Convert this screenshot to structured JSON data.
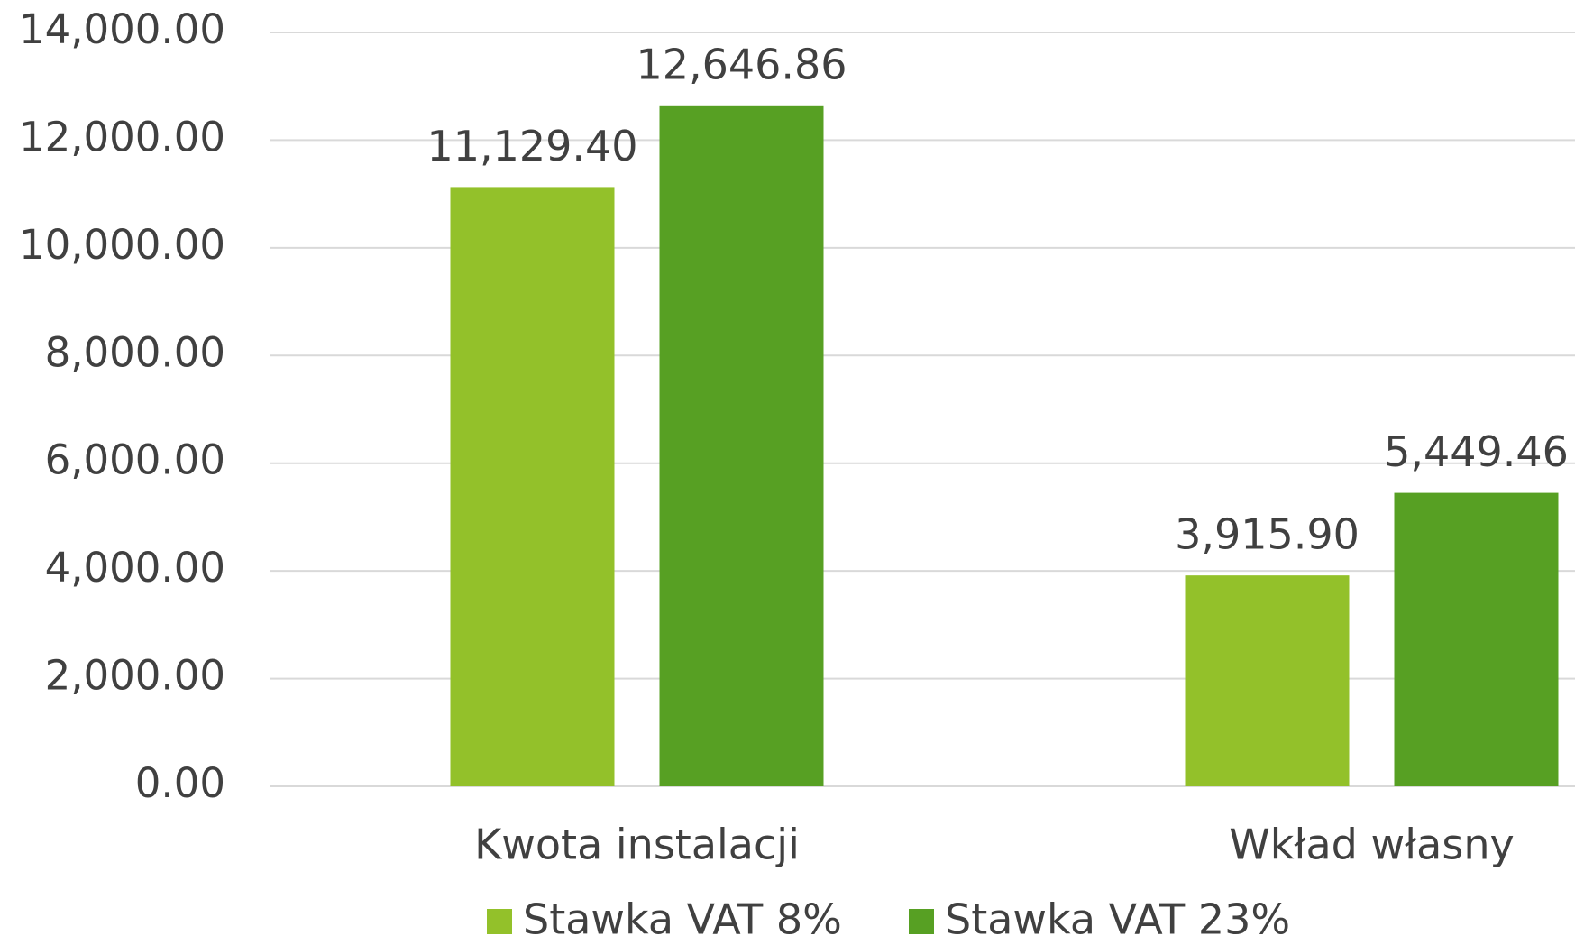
{
  "chart_data": {
    "type": "bar",
    "categories": [
      "Kwota instalacji",
      "Wkład własny"
    ],
    "series": [
      {
        "name": "Stawka VAT 8%",
        "color": "#93c12a",
        "values": [
          11129.4,
          3915.9
        ],
        "value_labels": [
          "11,129.40",
          "3,915.90"
        ]
      },
      {
        "name": "Stawka VAT 23%",
        "color": "#57a023",
        "values": [
          12646.86,
          5449.46
        ],
        "value_labels": [
          "12,646.86",
          "5,449.46"
        ]
      }
    ],
    "ylim": [
      0,
      14000
    ],
    "yticks": [
      {
        "value": 0,
        "label": "0.00"
      },
      {
        "value": 2000,
        "label": "2,000.00"
      },
      {
        "value": 4000,
        "label": "4,000.00"
      },
      {
        "value": 6000,
        "label": "6,000.00"
      },
      {
        "value": 8000,
        "label": "8,000.00"
      },
      {
        "value": 10000,
        "label": "10,000.00"
      },
      {
        "value": 12000,
        "label": "12,000.00"
      },
      {
        "value": 14000,
        "label": "14,000.00"
      }
    ],
    "grid": true,
    "legend": "bottom"
  }
}
